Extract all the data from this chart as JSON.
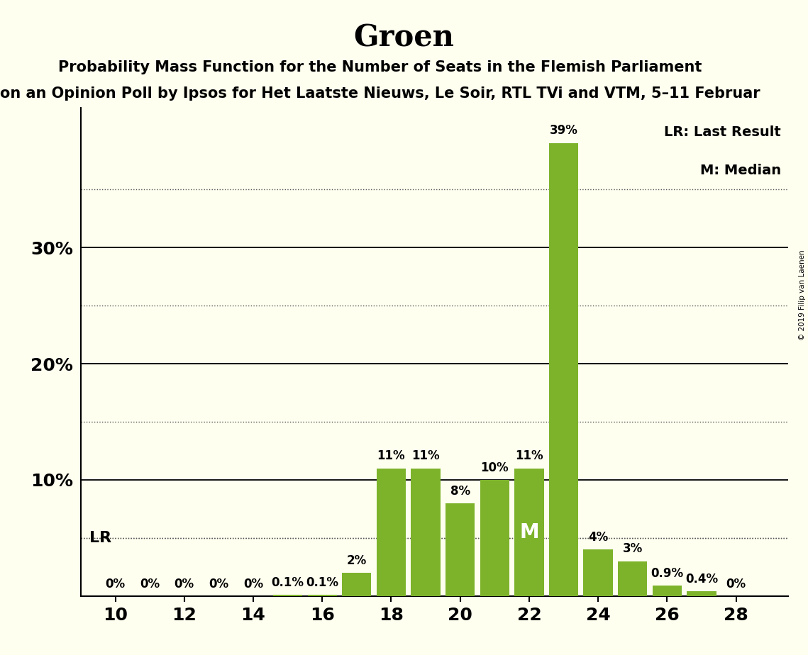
{
  "title": "Groen",
  "subtitle1": "Probability Mass Function for the Number of Seats in the Flemish Parliament",
  "subtitle2": "on an Opinion Poll by Ipsos for Het Laatste Nieuws, Le Soir, RTL TVi and VTM, 5–11 Februar",
  "copyright": "© 2019 Filip van Laenen",
  "seats": [
    10,
    11,
    12,
    13,
    14,
    15,
    16,
    17,
    18,
    19,
    20,
    21,
    22,
    23,
    24,
    25,
    26,
    27,
    28
  ],
  "probabilities": [
    0.0,
    0.0,
    0.0,
    0.0,
    0.0,
    0.1,
    0.1,
    2.0,
    11.0,
    11.0,
    8.0,
    10.0,
    11.0,
    39.0,
    4.0,
    3.0,
    0.9,
    0.4,
    0.0
  ],
  "bar_color": "#7db32b",
  "bg_color": "#fffff0",
  "lr_level": 5.0,
  "median_seat": 22,
  "lr_label": "LR",
  "median_label": "M",
  "legend_lr": "LR: Last Result",
  "legend_m": "M: Median",
  "solid_yticks": [
    10,
    20,
    30
  ],
  "dotted_yticks": [
    5,
    15,
    25,
    35
  ],
  "ylim": [
    0,
    42
  ],
  "xlim": [
    9,
    29.5
  ]
}
